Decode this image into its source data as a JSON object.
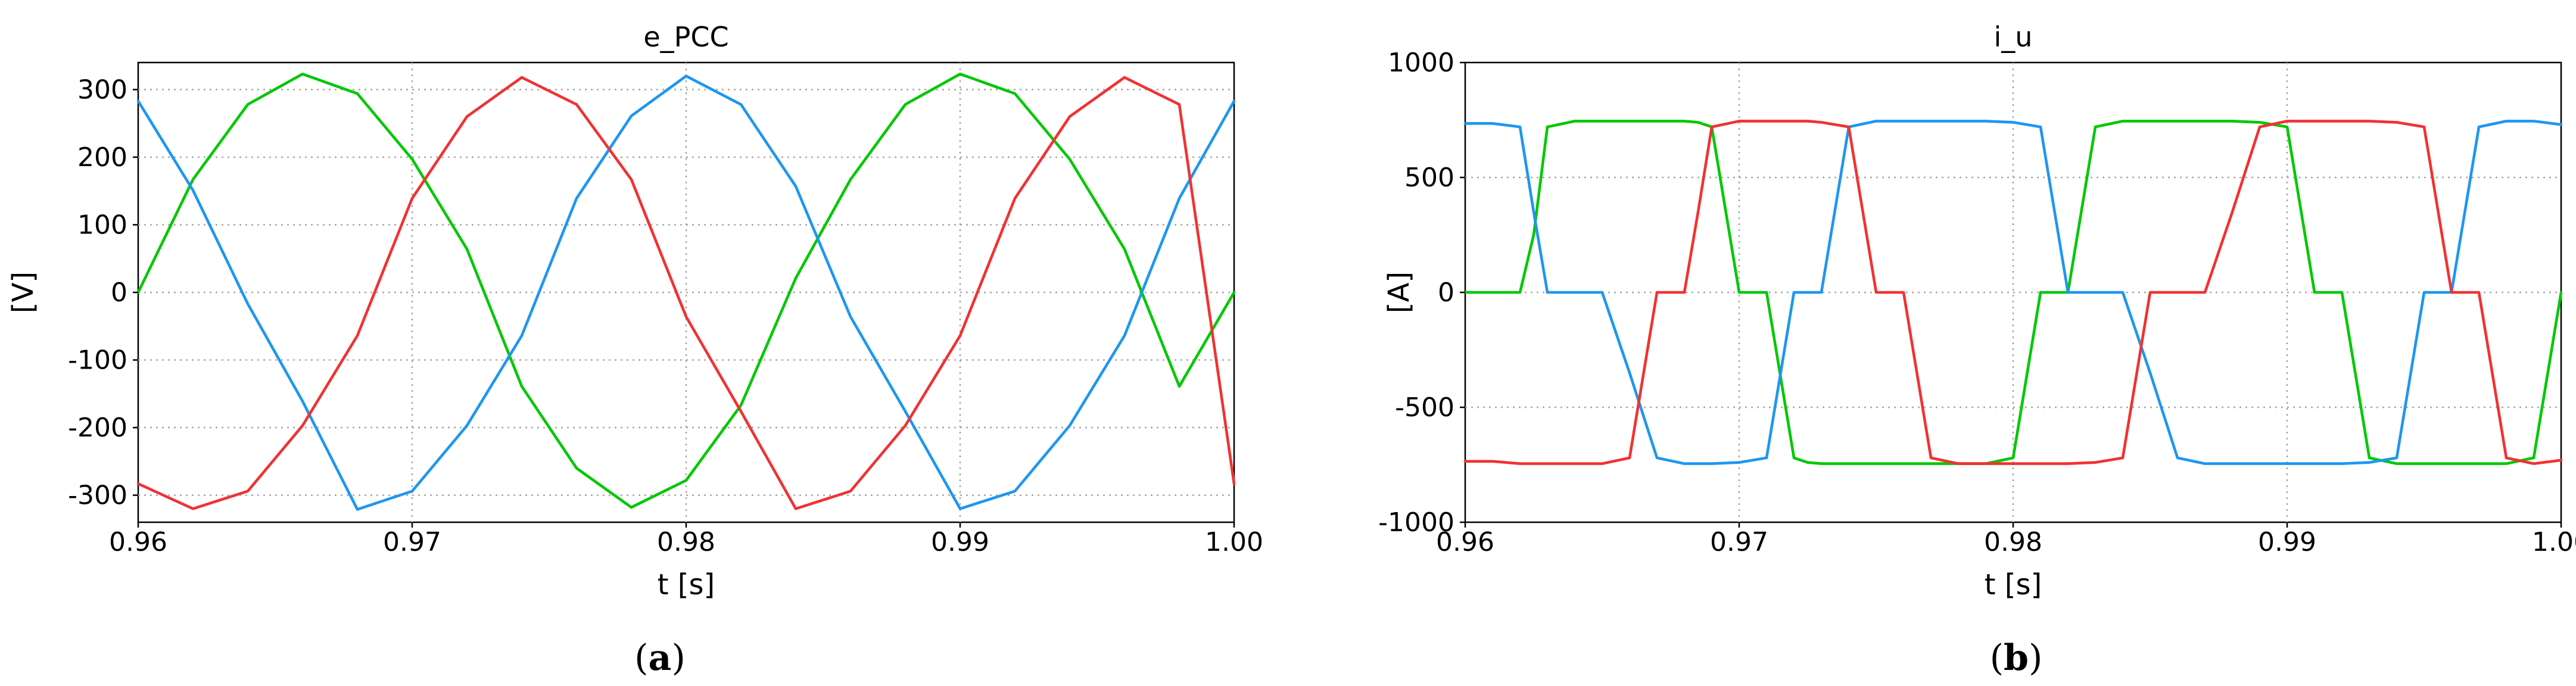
{
  "chart_data": [
    {
      "panel": "a",
      "type": "line",
      "title": "e_PCC",
      "xlabel": "t [s]",
      "ylabel": "[V]",
      "xlim": [
        0.96,
        1.0
      ],
      "ylim": [
        -340,
        340
      ],
      "xticks": [
        0.96,
        0.97,
        0.98,
        0.99,
        1.0
      ],
      "xtick_labels": [
        "0.96",
        "0.97",
        "0.98",
        "0.99",
        "1.00"
      ],
      "yticks": [
        300,
        200,
        100,
        0,
        -100,
        -200,
        -300
      ],
      "ytick_labels": [
        "300",
        "200",
        "100",
        "0",
        "-100",
        "-200",
        "-300"
      ],
      "grid": true,
      "legend": "none",
      "x": [
        0.96,
        0.962,
        0.964,
        0.966,
        0.968,
        0.97,
        0.972,
        0.974,
        0.976,
        0.978,
        0.98,
        0.982,
        0.984,
        0.986,
        0.988,
        0.99,
        0.992,
        0.994,
        0.996,
        0.998,
        1.0
      ],
      "series": [
        {
          "color": "#00c800",
          "values": [
            0,
            167,
            278,
            323,
            294,
            197,
            64,
            -139,
            -260,
            -318,
            -278,
            -167,
            21,
            167,
            278,
            323,
            294,
            197,
            64,
            -139,
            0
          ]
        },
        {
          "color": "#1e96f0",
          "values": [
            283,
            151,
            -17,
            -161,
            -321,
            -294,
            -197,
            -64,
            139,
            261,
            320,
            278,
            157,
            -36,
            -176,
            -320,
            -294,
            -197,
            -64,
            139,
            283
          ]
        },
        {
          "color": "#f03232",
          "values": [
            -283,
            -320,
            -294,
            -197,
            -64,
            139,
            260,
            318,
            278,
            167,
            -36,
            -176,
            -320,
            -294,
            -197,
            -64,
            139,
            260,
            318,
            278,
            -283
          ]
        }
      ]
    },
    {
      "panel": "b",
      "type": "line",
      "title": "i_u",
      "xlabel": "t [s]",
      "ylabel": "[A]",
      "xlim": [
        0.96,
        1.0
      ],
      "ylim": [
        -1000,
        1000
      ],
      "xticks": [
        0.96,
        0.97,
        0.98,
        0.99,
        1.0
      ],
      "xtick_labels": [
        "0.96",
        "0.97",
        "0.98",
        "0.99",
        "1.00"
      ],
      "yticks": [
        1000,
        500,
        0,
        -500,
        -1000
      ],
      "ytick_labels": [
        "1000",
        "500",
        "0",
        "-500",
        "-1000"
      ],
      "grid": true,
      "legend": "none",
      "x": [
        0.96,
        0.961,
        0.962,
        0.9625,
        0.963,
        0.964,
        0.965,
        0.966,
        0.967,
        0.968,
        0.9685,
        0.969,
        0.97,
        0.971,
        0.972,
        0.9725,
        0.973,
        0.974,
        0.975,
        0.976,
        0.977,
        0.978,
        0.979,
        0.98,
        0.981,
        0.982,
        0.983,
        0.984,
        0.985,
        0.986,
        0.987,
        0.988,
        0.989,
        0.99,
        0.991,
        0.992,
        0.993,
        0.994,
        0.995,
        0.996,
        0.997,
        0.998,
        0.999,
        1.0
      ],
      "series": [
        {
          "color": "#00c800",
          "values": [
            0,
            0,
            0,
            250,
            720,
            745,
            745,
            745,
            745,
            745,
            740,
            720,
            0,
            0,
            -720,
            -740,
            -745,
            -745,
            -745,
            -745,
            -745,
            -745,
            -745,
            -720,
            0,
            0,
            720,
            745,
            745,
            745,
            745,
            745,
            740,
            720,
            0,
            0,
            -720,
            -745,
            -745,
            -745,
            -745,
            -745,
            -720,
            0
          ]
        },
        {
          "color": "#1e96f0",
          "values": [
            735,
            735,
            720,
            350,
            0,
            0,
            0,
            -350,
            -720,
            -745,
            -745,
            -745,
            -740,
            -720,
            0,
            0,
            0,
            720,
            745,
            745,
            745,
            745,
            745,
            740,
            720,
            0,
            0,
            0,
            -350,
            -720,
            -745,
            -745,
            -745,
            -745,
            -745,
            -745,
            -740,
            -720,
            0,
            0,
            720,
            745,
            745,
            730
          ]
        },
        {
          "color": "#f03232",
          "values": [
            -735,
            -735,
            -745,
            -745,
            -745,
            -745,
            -745,
            -720,
            0,
            0,
            350,
            720,
            745,
            745,
            745,
            745,
            740,
            720,
            0,
            0,
            -720,
            -745,
            -745,
            -745,
            -745,
            -745,
            -740,
            -720,
            0,
            0,
            0,
            350,
            720,
            745,
            745,
            745,
            745,
            740,
            720,
            0,
            0,
            -720,
            -745,
            -730
          ]
        }
      ]
    }
  ],
  "captions": [
    {
      "open": "(",
      "letter": "a",
      "close": ")"
    },
    {
      "open": "(",
      "letter": "b",
      "close": ")"
    }
  ]
}
